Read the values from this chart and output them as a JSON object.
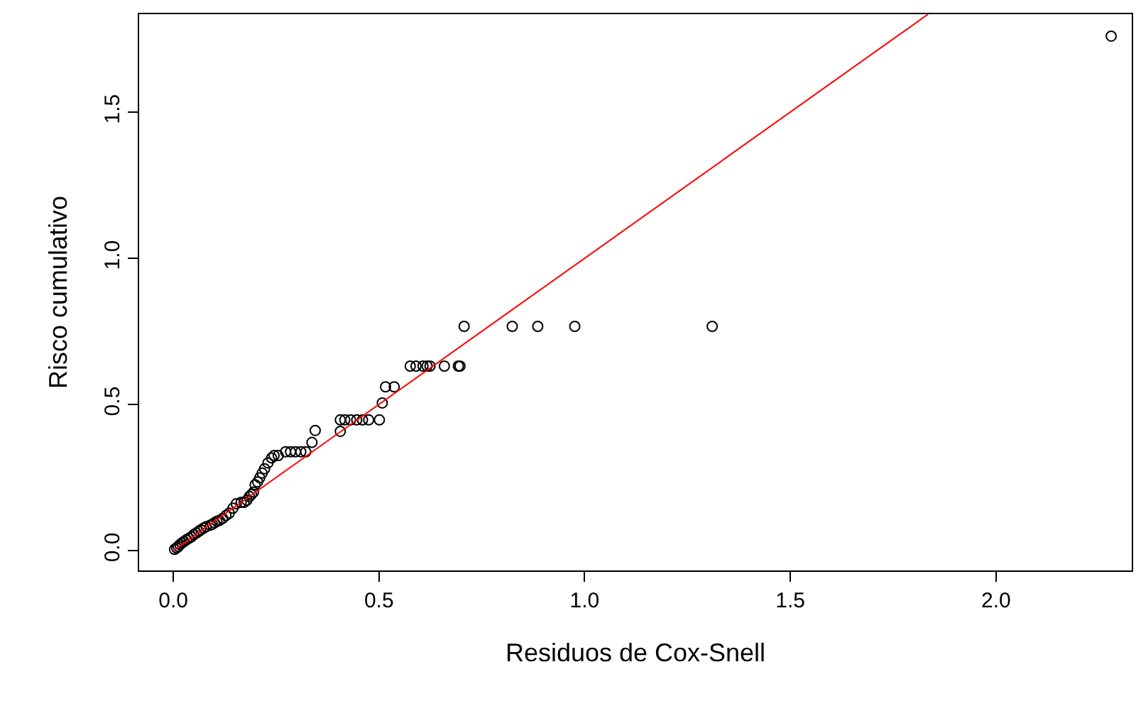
{
  "chart_data": {
    "type": "scatter",
    "xlabel": "Residuos de Cox-Snell",
    "ylabel": "Risco cumulativo",
    "xlim": [
      -0.083,
      2.33
    ],
    "ylim": [
      -0.068,
      1.835
    ],
    "xticks": [
      {
        "value": 0,
        "label": "0.0"
      },
      0.5,
      {
        "value": 1,
        "label": "1.0"
      },
      1.5,
      {
        "value": 2,
        "label": "2.0"
      }
    ],
    "yticks": [
      {
        "value": 0,
        "label": "0.0"
      },
      0.5,
      {
        "value": 1,
        "label": "1.0"
      },
      1.5
    ],
    "grid": false,
    "marker": "circle",
    "series": [
      {
        "color": "#000000",
        "x": [
          0.003,
          0.008,
          0.012,
          0.016,
          0.021,
          0.026,
          0.032,
          0.038,
          0.044,
          0.05,
          0.056,
          0.062,
          0.067,
          0.074,
          0.08,
          0.09,
          0.095,
          0.1,
          0.106,
          0.112,
          0.12,
          0.128,
          0.136,
          0.145,
          0.153,
          0.165,
          0.172,
          0.179,
          0.185,
          0.19,
          0.195,
          0.199,
          0.205,
          0.21,
          0.216,
          0.222,
          0.23,
          0.239,
          0.245,
          0.255,
          0.273,
          0.285,
          0.297,
          0.31,
          0.322,
          0.337,
          0.345,
          0.406,
          0.406,
          0.417,
          0.431,
          0.446,
          0.46,
          0.475,
          0.501,
          0.508,
          0.516,
          0.537,
          0.576,
          0.59,
          0.607,
          0.617,
          0.624,
          0.659,
          0.693,
          0.697,
          0.707,
          0.824,
          0.886,
          0.976,
          1.31,
          2.28
        ],
        "values": [
          0.004,
          0.009,
          0.014,
          0.02,
          0.026,
          0.031,
          0.037,
          0.042,
          0.047,
          0.055,
          0.06,
          0.066,
          0.071,
          0.077,
          0.082,
          0.087,
          0.09,
          0.095,
          0.1,
          0.103,
          0.11,
          0.12,
          0.128,
          0.145,
          0.16,
          0.165,
          0.165,
          0.172,
          0.185,
          0.192,
          0.2,
          0.225,
          0.235,
          0.249,
          0.265,
          0.28,
          0.3,
          0.317,
          0.325,
          0.325,
          0.338,
          0.338,
          0.338,
          0.338,
          0.338,
          0.37,
          0.411,
          0.408,
          0.447,
          0.447,
          0.447,
          0.447,
          0.447,
          0.447,
          0.447,
          0.505,
          0.56,
          0.56,
          0.631,
          0.631,
          0.631,
          0.631,
          0.631,
          0.631,
          0.631,
          0.631,
          0.767,
          0.767,
          0.767,
          0.767,
          0.767,
          1.76
        ]
      },
      {
        "type": "line",
        "color": "#ff0000",
        "line_style": "solid",
        "marker": "none",
        "x": [
          0,
          1.835
        ],
        "values": [
          0,
          1.835
        ]
      }
    ]
  }
}
